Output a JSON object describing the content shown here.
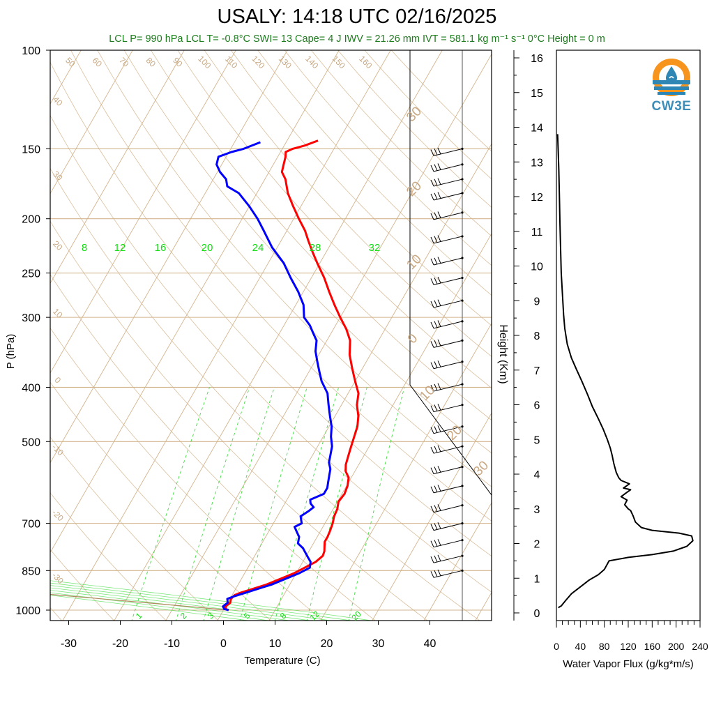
{
  "title": "USALY: 14:18 UTC 02/16/2025",
  "subtitle": "LCL P= 990 hPa  LCL T= -0.8°C  SWI= 13  Cape= 4 J  IWV = 21.26 mm  IVT = 581.1 kg m⁻¹ s⁻¹  0°C Height = 0 m",
  "logo": {
    "text": "CW3E",
    "icon": "water-drop-sun-icon",
    "colors": [
      "#f7941d",
      "#2e86b5"
    ]
  },
  "colors": {
    "temperature": "#ff0000",
    "dewpoint": "#0000ff",
    "isotherm": "#d2b48c",
    "mixing_ratio": "#44dd44",
    "flux": "#000000",
    "label_tan": "#c8a882",
    "label_green": "#11dd11"
  },
  "chart_data": [
    {
      "type": "line",
      "subtype": "skew-t",
      "xlabel": "Temperature (C)",
      "ylabel": "P (hPa)",
      "xlim": [
        -33,
        52
      ],
      "ylim": [
        1050,
        100
      ],
      "log_y": true,
      "xticks": [
        "-30",
        "-20",
        "-10",
        "0",
        "10",
        "20",
        "30",
        "40"
      ],
      "yticks": [
        {
          "p": 100,
          "label": "100"
        },
        {
          "p": 150,
          "label": "150"
        },
        {
          "p": 200,
          "label": "200"
        },
        {
          "p": 250,
          "label": "250"
        },
        {
          "p": 300,
          "label": "300"
        },
        {
          "p": 400,
          "label": "400"
        },
        {
          "p": 500,
          "label": "500"
        },
        {
          "p": 700,
          "label": "700"
        },
        {
          "p": 850,
          "label": "850"
        },
        {
          "p": 1000,
          "label": "1000"
        }
      ],
      "isotherm_labels": [
        "50",
        "60",
        "70",
        "80",
        "90",
        "100",
        "110",
        "120",
        "130",
        "140",
        "150",
        "160",
        "40",
        "30",
        "20",
        "10",
        "0",
        "-10",
        "-20",
        "-30"
      ],
      "dry_adiabat_labels": [
        "30",
        "20",
        "10",
        "0",
        "10",
        "20",
        "30"
      ],
      "mixing_ratio_top_labels": [
        "8",
        "12",
        "16",
        "20",
        "24",
        "28",
        "32"
      ],
      "mixing_ratio_bottom_labels": [
        "1",
        "2",
        "3",
        "5",
        "8",
        "12",
        "20"
      ],
      "series": [
        {
          "name": "temperature",
          "points": [
            [
              1000,
              1.0
            ],
            [
              995,
              0.3
            ],
            [
              985,
              0.0
            ],
            [
              970,
              0.5
            ],
            [
              955,
              0.2
            ],
            [
              940,
              0.5
            ],
            [
              930,
              1.5
            ],
            [
              915,
              3.5
            ],
            [
              900,
              5.5
            ],
            [
              880,
              7.5
            ],
            [
              860,
              9.5
            ],
            [
              840,
              11.0
            ],
            [
              820,
              12.5
            ],
            [
              800,
              13.2
            ],
            [
              785,
              13.0
            ],
            [
              770,
              12.5
            ],
            [
              755,
              12.0
            ],
            [
              740,
              12.0
            ],
            [
              720,
              11.8
            ],
            [
              700,
              11.5
            ],
            [
              680,
              11.0
            ],
            [
              660,
              10.8
            ],
            [
              640,
              10.2
            ],
            [
              620,
              10.5
            ],
            [
              600,
              10.2
            ],
            [
              580,
              9.5
            ],
            [
              565,
              8.2
            ],
            [
              550,
              7.5
            ],
            [
              530,
              7.0
            ],
            [
              510,
              6.5
            ],
            [
              490,
              6.0
            ],
            [
              470,
              5.5
            ],
            [
              450,
              4.5
            ],
            [
              430,
              3.0
            ],
            [
              410,
              2.0
            ],
            [
              390,
              0.0
            ],
            [
              370,
              -2.0
            ],
            [
              350,
              -4.0
            ],
            [
              330,
              -5.5
            ],
            [
              315,
              -7.5
            ],
            [
              300,
              -10.0
            ],
            [
              285,
              -12.5
            ],
            [
              270,
              -15.0
            ],
            [
              255,
              -17.5
            ],
            [
              240,
              -20.5
            ],
            [
              230,
              -22.5
            ],
            [
              220,
              -24.5
            ],
            [
              210,
              -26.5
            ],
            [
              200,
              -29.0
            ],
            [
              190,
              -31.5
            ],
            [
              180,
              -34.0
            ],
            [
              170,
              -36.0
            ],
            [
              165,
              -37.5
            ],
            [
              160,
              -38.0
            ],
            [
              155,
              -38.5
            ],
            [
              152,
              -39.0
            ],
            [
              150,
              -38.0
            ],
            [
              148,
              -36.0
            ],
            [
              145,
              -34.0
            ]
          ]
        },
        {
          "name": "dewpoint",
          "points": [
            [
              1000,
              1.0
            ],
            [
              995,
              0.0
            ],
            [
              985,
              -0.5
            ],
            [
              970,
              0.0
            ],
            [
              955,
              -0.5
            ],
            [
              945,
              0.5
            ],
            [
              930,
              2.5
            ],
            [
              915,
              4.5
            ],
            [
              900,
              6.5
            ],
            [
              880,
              8.5
            ],
            [
              860,
              10.5
            ],
            [
              840,
              12.0
            ],
            [
              820,
              11.5
            ],
            [
              805,
              10.5
            ],
            [
              790,
              9.5
            ],
            [
              775,
              8.5
            ],
            [
              760,
              7.0
            ],
            [
              740,
              6.5
            ],
            [
              725,
              5.5
            ],
            [
              710,
              4.5
            ],
            [
              700,
              5.5
            ],
            [
              690,
              5.0
            ],
            [
              680,
              4.5
            ],
            [
              665,
              5.5
            ],
            [
              655,
              6.0
            ],
            [
              645,
              5.0
            ],
            [
              635,
              4.5
            ],
            [
              620,
              6.5
            ],
            [
              605,
              6.5
            ],
            [
              590,
              6.0
            ],
            [
              575,
              5.5
            ],
            [
              560,
              5.0
            ],
            [
              545,
              4.0
            ],
            [
              530,
              3.5
            ],
            [
              510,
              2.8
            ],
            [
              490,
              1.5
            ],
            [
              470,
              0.5
            ],
            [
              450,
              -1.0
            ],
            [
              430,
              -2.5
            ],
            [
              410,
              -4.0
            ],
            [
              390,
              -6.5
            ],
            [
              375,
              -8.0
            ],
            [
              360,
              -9.5
            ],
            [
              345,
              -11.0
            ],
            [
              330,
              -12.0
            ],
            [
              320,
              -13.5
            ],
            [
              310,
              -15.0
            ],
            [
              300,
              -17.0
            ],
            [
              285,
              -18.5
            ],
            [
              270,
              -21.0
            ],
            [
              255,
              -24.0
            ],
            [
              240,
              -27.0
            ],
            [
              225,
              -31.0
            ],
            [
              210,
              -34.5
            ],
            [
              200,
              -37.0
            ],
            [
              190,
              -40.0
            ],
            [
              180,
              -43.5
            ],
            [
              175,
              -46.5
            ],
            [
              170,
              -47.5
            ],
            [
              165,
              -49.5
            ],
            [
              160,
              -51.0
            ],
            [
              155,
              -51.5
            ],
            [
              152,
              -49.5
            ],
            [
              150,
              -47.5
            ],
            [
              146,
              -45.0
            ]
          ]
        }
      ]
    },
    {
      "type": "line",
      "subtype": "height-profile",
      "xlabel": "Water Vapor Flux (g/kg*m/s)",
      "ylabel": "Height (Km)",
      "xlim": [
        0,
        240
      ],
      "ylim": [
        -0.3,
        16.3
      ],
      "xticks": [
        "0",
        "40",
        "80",
        "120",
        "160",
        "200",
        "240"
      ],
      "yticks": [
        "0",
        "1",
        "2",
        "3",
        "4",
        "5",
        "6",
        "7",
        "8",
        "9",
        "10",
        "11",
        "12",
        "13",
        "14",
        "15",
        "16"
      ],
      "series": [
        {
          "name": "water vapor flux",
          "points": [
            [
              3,
              0.15
            ],
            [
              8,
              0.2
            ],
            [
              15,
              0.35
            ],
            [
              25,
              0.55
            ],
            [
              40,
              0.75
            ],
            [
              55,
              0.95
            ],
            [
              70,
              1.1
            ],
            [
              80,
              1.25
            ],
            [
              88,
              1.5
            ],
            [
              120,
              1.6
            ],
            [
              160,
              1.68
            ],
            [
              195,
              1.78
            ],
            [
              218,
              1.92
            ],
            [
              228,
              2.08
            ],
            [
              226,
              2.22
            ],
            [
              205,
              2.3
            ],
            [
              160,
              2.38
            ],
            [
              142,
              2.46
            ],
            [
              132,
              2.62
            ],
            [
              128,
              2.8
            ],
            [
              124,
              2.95
            ],
            [
              120,
              3.0
            ],
            [
              114,
              3.12
            ],
            [
              118,
              3.25
            ],
            [
              108,
              3.35
            ],
            [
              118,
              3.48
            ],
            [
              124,
              3.55
            ],
            [
              112,
              3.6
            ],
            [
              122,
              3.72
            ],
            [
              108,
              3.82
            ],
            [
              104,
              3.9
            ],
            [
              100,
              4.05
            ],
            [
              96,
              4.3
            ],
            [
              93,
              4.55
            ],
            [
              90,
              4.75
            ],
            [
              85,
              5.0
            ],
            [
              78,
              5.3
            ],
            [
              70,
              5.6
            ],
            [
              60,
              5.95
            ],
            [
              52,
              6.3
            ],
            [
              42,
              6.7
            ],
            [
              34,
              7.0
            ],
            [
              25,
              7.35
            ],
            [
              18,
              7.75
            ],
            [
              14,
              8.2
            ],
            [
              12,
              8.6
            ],
            [
              10,
              9.2
            ],
            [
              8,
              9.8
            ],
            [
              7,
              10.5
            ],
            [
              6,
              11.2
            ],
            [
              5,
              12.0
            ],
            [
              4,
              12.8
            ],
            [
              3,
              13.3
            ],
            [
              2,
              13.8
            ]
          ]
        }
      ]
    }
  ]
}
